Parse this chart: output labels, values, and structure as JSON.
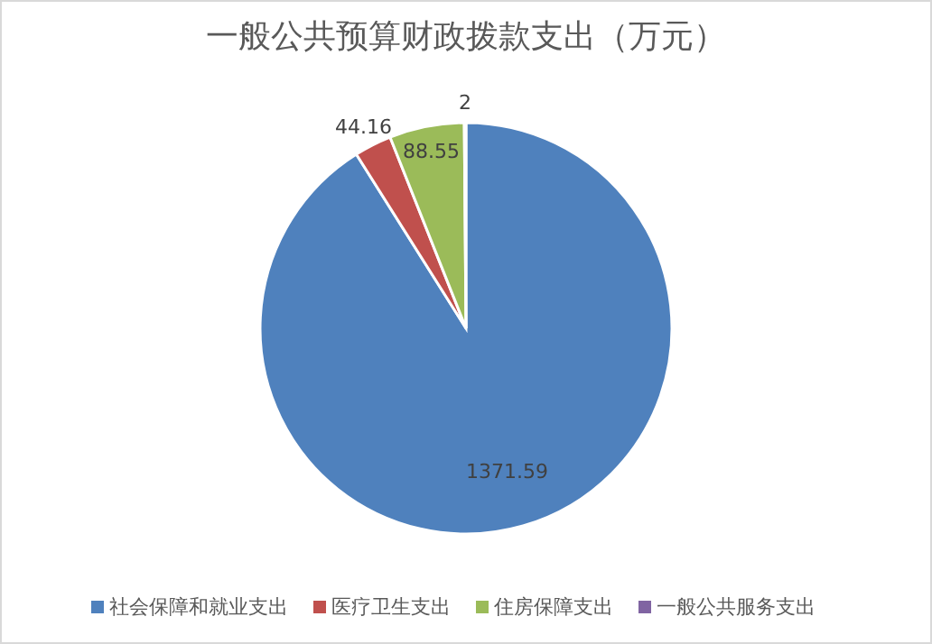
{
  "chart_data": {
    "type": "pie",
    "title": "一般公共预算财政拨款支出（万元）",
    "categories": [
      "社会保障和就业支出",
      "医疗卫生支出",
      "住房保障支出",
      "一般公共服务支出"
    ],
    "values": [
      1371.59,
      44.16,
      88.55,
      2
    ],
    "colors": [
      "#4f81bd",
      "#c0504d",
      "#9bbb59",
      "#8064a2"
    ],
    "data_labels": true,
    "legend": "bottom"
  }
}
